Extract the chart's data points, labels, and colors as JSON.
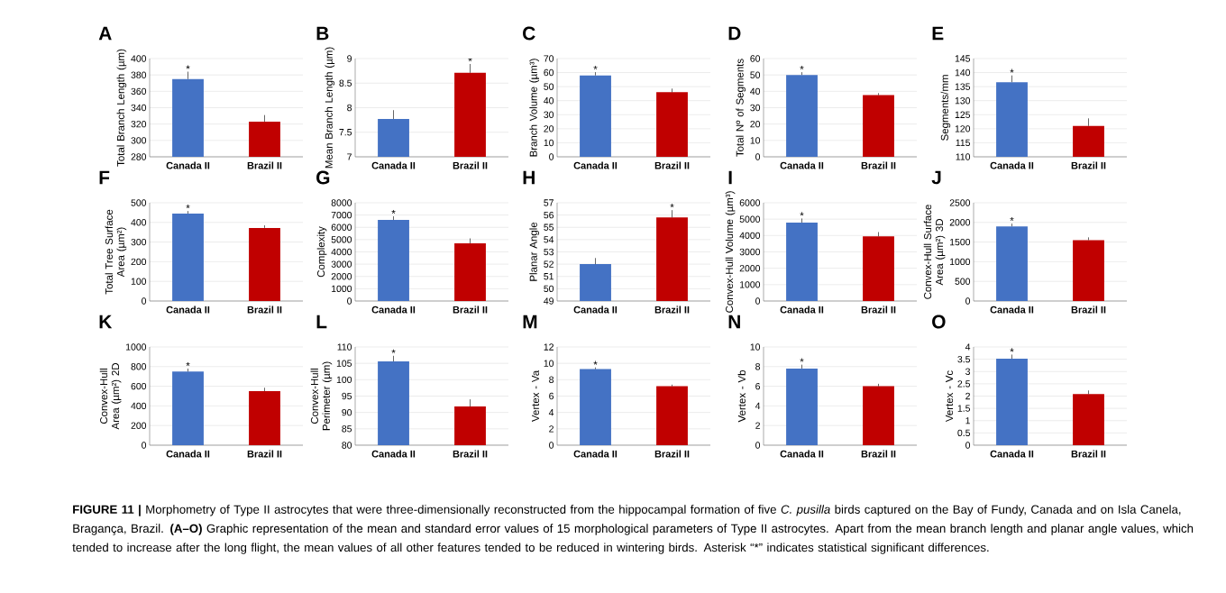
{
  "chart_data": [
    {
      "type": "bar",
      "title": "A",
      "ylabel": "Total Branch Length (µm)",
      "categories": [
        "Canada II",
        "Brazil II"
      ],
      "values": [
        375,
        323
      ],
      "colors": [
        "#4472c4",
        "#c00000"
      ],
      "errors": [
        [
          375,
          384
        ],
        [
          323,
          331
        ]
      ],
      "ylim": [
        280,
        400
      ],
      "yticks": [
        280,
        300,
        320,
        340,
        360,
        380,
        400
      ],
      "grid": "y",
      "annotations": [
        {
          "text": "*",
          "x": "Canada II",
          "y": 384
        },
        "**FIGURE 11 |** Morphometry of Type II astrocytes that were three-dimensionally reconstructed from the hippocampal formation of five *C. pusilla* birds captured on the Bay of Fundy, Canada and on Isla Canela, Bragança, Brazil. **(A–O)** Graphic representation of the mean and standard error values of 15 morphological parameters of Type II astrocytes. Apart from the mean branch length and planar angle values, which tended to increase after the long flight, the mean values of all other features tended to be reduced in wintering birds. Asterisk “*” indicates statistical significant differences."
      ]
    },
    {
      "type": "bar",
      "title": "B",
      "ylabel": "Mean Branch Length (µm)",
      "categories": [
        "Canada II",
        "Brazil II"
      ],
      "values": [
        7.77,
        8.71
      ],
      "colors": [
        "#4472c4",
        "#c00000"
      ],
      "errors": [
        [
          7.77,
          7.95
        ],
        [
          8.71,
          8.89
        ]
      ],
      "ylim": [
        7,
        9
      ],
      "yticks": [
        7,
        7.5,
        8,
        8.5,
        9
      ],
      "grid": "y",
      "annotations": [
        {
          "text": "*",
          "x": "Brazil II",
          "y": 8.89
        }
      ]
    },
    {
      "type": "bar",
      "title": "C",
      "ylabel": "Branch Volume (µm³)",
      "categories": [
        "Canada II",
        "Brazil II"
      ],
      "values": [
        58,
        46
      ],
      "colors": [
        "#4472c4",
        "#c00000"
      ],
      "errors": [
        [
          58,
          60.3
        ],
        [
          46,
          48.6
        ]
      ],
      "ylim": [
        0,
        70
      ],
      "yticks": [
        0,
        10,
        20,
        30,
        40,
        50,
        60,
        70
      ],
      "grid": "y",
      "annotations": [
        {
          "text": "*",
          "x": "Canada II",
          "y": 60.3
        }
      ]
    },
    {
      "type": "bar",
      "title": "D",
      "ylabel": "Total Nº of Segments",
      "categories": [
        "Canada II",
        "Brazil II"
      ],
      "values": [
        50,
        37.7
      ],
      "colors": [
        "#4472c4",
        "#c00000"
      ],
      "errors": [
        [
          50,
          51.7
        ],
        [
          37.7,
          38.9
        ]
      ],
      "ylim": [
        0,
        60
      ],
      "yticks": [
        0,
        10,
        20,
        30,
        40,
        50,
        60
      ],
      "grid": "y",
      "annotations": [
        {
          "text": "*",
          "x": "Canada II",
          "y": 51.7
        }
      ]
    },
    {
      "type": "bar",
      "title": "E",
      "ylabel": "Segments/mm",
      "categories": [
        "Canada II",
        "Brazil II"
      ],
      "values": [
        136.6,
        121
      ],
      "colors": [
        "#4472c4",
        "#c00000"
      ],
      "errors": [
        [
          136.6,
          139
        ],
        [
          121,
          123.7
        ]
      ],
      "ylim": [
        110,
        145
      ],
      "yticks": [
        110,
        115,
        120,
        125,
        130,
        135,
        140,
        145
      ],
      "grid": "y",
      "annotations": [
        {
          "text": "*",
          "x": "Canada II",
          "y": 139
        }
      ]
    },
    {
      "type": "bar",
      "title": "F",
      "ylabel": "Total Tree Surface Area (µm²)",
      "categories": [
        "Canada II",
        "Brazil II"
      ],
      "values": [
        445,
        372
      ],
      "colors": [
        "#4472c4",
        "#c00000"
      ],
      "errors": [
        [
          445,
          458
        ],
        [
          372,
          385
        ]
      ],
      "ylim": [
        0,
        500
      ],
      "yticks": [
        0,
        100,
        200,
        300,
        400,
        500
      ],
      "grid": "y",
      "annotations": [
        {
          "text": "*",
          "x": "Canada II",
          "y": 458
        }
      ]
    },
    {
      "type": "bar",
      "title": "G",
      "ylabel": "Complexity",
      "categories": [
        "Canada II",
        "Brazil II"
      ],
      "values": [
        6600,
        4700
      ],
      "colors": [
        "#4472c4",
        "#c00000"
      ],
      "errors": [
        [
          6600,
          6900
        ],
        [
          4700,
          5100
        ]
      ],
      "ylim": [
        0,
        8000
      ],
      "yticks": [
        0,
        1000,
        2000,
        3000,
        4000,
        5000,
        6000,
        7000,
        8000
      ],
      "grid": "y",
      "annotations": [
        {
          "text": "*",
          "x": "Canada II",
          "y": 6900
        }
      ]
    },
    {
      "type": "bar",
      "title": "H",
      "ylabel": "Planar Angle",
      "categories": [
        "Canada II",
        "Brazil II"
      ],
      "values": [
        52,
        55.8
      ],
      "colors": [
        "#4472c4",
        "#c00000"
      ],
      "errors": [
        [
          52,
          52.5
        ],
        [
          55.8,
          56.4
        ]
      ],
      "ylim": [
        49,
        57
      ],
      "yticks": [
        49,
        50,
        51,
        52,
        53,
        54,
        55,
        56,
        57
      ],
      "grid": "y",
      "annotations": [
        {
          "text": "*",
          "x": "Brazil II",
          "y": 56.4
        }
      ]
    },
    {
      "type": "bar",
      "title": "I",
      "ylabel": "Convex-Hull Volume (µm³)",
      "categories": [
        "Canada II",
        "Brazil II"
      ],
      "values": [
        4790,
        3950
      ],
      "colors": [
        "#4472c4",
        "#c00000"
      ],
      "errors": [
        [
          4790,
          5040
        ],
        [
          3950,
          4210
        ]
      ],
      "ylim": [
        0,
        6000
      ],
      "yticks": [
        0,
        1000,
        2000,
        3000,
        4000,
        5000,
        6000
      ],
      "grid": "y",
      "annotations": [
        {
          "text": "*",
          "x": "Canada II",
          "y": 5040
        }
      ]
    },
    {
      "type": "bar",
      "title": "J",
      "ylabel": "Convex-Hull Surface Area (µm²) 3D",
      "categories": [
        "Canada II",
        "Brazil II"
      ],
      "values": [
        1900,
        1550
      ],
      "colors": [
        "#4472c4",
        "#c00000"
      ],
      "errors": [
        [
          1900,
          1970
        ],
        [
          1550,
          1620
        ]
      ],
      "ylim": [
        0,
        2500
      ],
      "yticks": [
        0,
        500,
        1000,
        1500,
        2000,
        2500
      ],
      "grid": "y",
      "annotations": [
        {
          "text": "*",
          "x": "Canada II",
          "y": 1970
        }
      ]
    },
    {
      "type": "bar",
      "title": "K",
      "ylabel": "Convex-Hull Area (µm²) 2D",
      "categories": [
        "Canada II",
        "Brazil II"
      ],
      "values": [
        750,
        550
      ],
      "colors": [
        "#4472c4",
        "#c00000"
      ],
      "errors": [
        [
          750,
          780
        ],
        [
          550,
          585
        ]
      ],
      "ylim": [
        0,
        1000
      ],
      "yticks": [
        0,
        200,
        400,
        600,
        800,
        1000
      ],
      "grid": "y",
      "annotations": [
        {
          "text": "*",
          "x": "Canada II",
          "y": 780
        }
      ]
    },
    {
      "type": "bar",
      "title": "L",
      "ylabel": "Convex-Hull Perimeter (µm)",
      "categories": [
        "Canada II",
        "Brazil II"
      ],
      "values": [
        105.6,
        91.8
      ],
      "colors": [
        "#4472c4",
        "#c00000"
      ],
      "errors": [
        [
          105.6,
          107.3
        ],
        [
          91.8,
          94
        ]
      ],
      "ylim": [
        80,
        110
      ],
      "yticks": [
        80,
        85,
        90,
        95,
        100,
        105,
        110
      ],
      "grid": "y",
      "annotations": [
        {
          "text": "*",
          "x": "Canada II",
          "y": 107.3
        }
      ]
    },
    {
      "type": "bar",
      "title": "M",
      "ylabel": "Vertex - Va",
      "categories": [
        "Canada II",
        "Brazil II"
      ],
      "values": [
        9.3,
        7.2
      ],
      "colors": [
        "#4472c4",
        "#c00000"
      ],
      "errors": [
        [
          9.3,
          9.5
        ],
        [
          7.2,
          7.4
        ]
      ],
      "ylim": [
        0,
        12
      ],
      "yticks": [
        0,
        2,
        4,
        6,
        8,
        10,
        12
      ],
      "grid": "y",
      "annotations": [
        {
          "text": "*",
          "x": "Canada II",
          "y": 9.5
        }
      ]
    },
    {
      "type": "bar",
      "title": "N",
      "ylabel": "Vertex - Vb",
      "categories": [
        "Canada II",
        "Brazil II"
      ],
      "values": [
        7.8,
        6
      ],
      "colors": [
        "#4472c4",
        "#c00000"
      ],
      "errors": [
        [
          7.8,
          8.2
        ],
        [
          6,
          6.25
        ]
      ],
      "ylim": [
        0,
        10
      ],
      "yticks": [
        0,
        2,
        4,
        6,
        8,
        10
      ],
      "grid": "y",
      "annotations": [
        {
          "text": "*",
          "x": "Canada II",
          "y": 8.2
        }
      ]
    },
    {
      "type": "bar",
      "title": "O",
      "ylabel": "Vertex - Vc",
      "categories": [
        "Canada II",
        "Brazil II"
      ],
      "values": [
        3.52,
        2.08
      ],
      "colors": [
        "#4472c4",
        "#c00000"
      ],
      "errors": [
        [
          3.52,
          3.69
        ],
        [
          2.08,
          2.23
        ]
      ],
      "ylim": [
        0,
        4
      ],
      "yticks": [
        0,
        0.5,
        1,
        1.5,
        2,
        2.5,
        3,
        3.5,
        4
      ],
      "grid": "y",
      "annotations": [
        {
          "text": "*",
          "x": "Canada II",
          "y": 3.69
        }
      ]
    }
  ]
}
